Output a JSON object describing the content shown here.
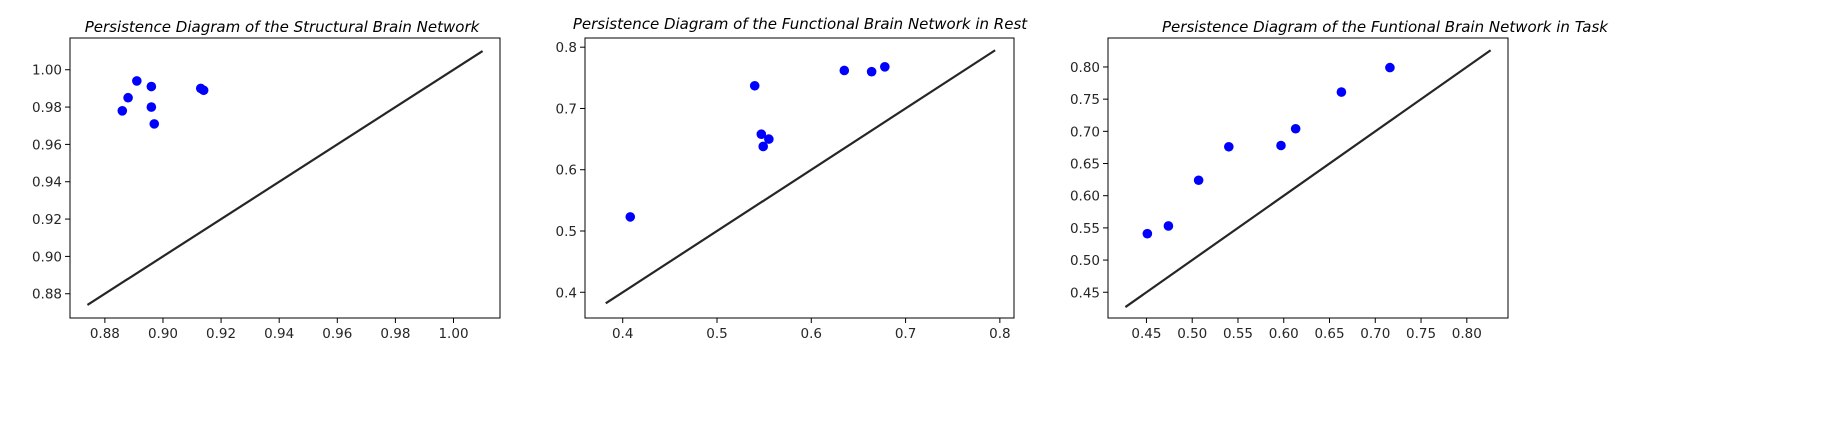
{
  "chart_data": [
    {
      "type": "scatter",
      "title": "Persistence Diagram of the Structural Brain Network",
      "xlabel": "",
      "ylabel": "",
      "xlim": [
        0.868,
        1.016
      ],
      "ylim": [
        0.867,
        1.017
      ],
      "xticks": [
        0.88,
        0.9,
        0.92,
        0.94,
        0.96,
        0.98,
        1.0
      ],
      "xtick_labels": [
        "0.88",
        "0.90",
        "0.92",
        "0.94",
        "0.96",
        "0.98",
        "1.00"
      ],
      "yticks": [
        0.88,
        0.9,
        0.92,
        0.94,
        0.96,
        0.98,
        1.0
      ],
      "ytick_labels": [
        "0.88",
        "0.90",
        "0.92",
        "0.94",
        "0.96",
        "0.98",
        "1.00"
      ],
      "diagonal": [
        0.874,
        1.01
      ],
      "point_color": "#0000ff",
      "line_color": "#262626",
      "points": [
        {
          "x": 0.886,
          "y": 0.978
        },
        {
          "x": 0.888,
          "y": 0.985
        },
        {
          "x": 0.891,
          "y": 0.994
        },
        {
          "x": 0.896,
          "y": 0.991
        },
        {
          "x": 0.896,
          "y": 0.98
        },
        {
          "x": 0.897,
          "y": 0.971
        },
        {
          "x": 0.913,
          "y": 0.99
        },
        {
          "x": 0.914,
          "y": 0.989
        }
      ]
    },
    {
      "type": "scatter",
      "title": "Persistence Diagram of the Functional Brain Network in Rest",
      "xlabel": "",
      "ylabel": "",
      "xlim": [
        0.36,
        0.815
      ],
      "ylim": [
        0.358,
        0.815
      ],
      "xticks": [
        0.4,
        0.5,
        0.6,
        0.7,
        0.8
      ],
      "xtick_labels": [
        "0.4",
        "0.5",
        "0.6",
        "0.7",
        "0.8"
      ],
      "yticks": [
        0.4,
        0.5,
        0.6,
        0.7,
        0.8
      ],
      "ytick_labels": [
        "0.4",
        "0.5",
        "0.6",
        "0.7",
        "0.8"
      ],
      "diagonal": [
        0.382,
        0.795
      ],
      "point_color": "#0000ff",
      "line_color": "#262626",
      "points": [
        {
          "x": 0.408,
          "y": 0.523
        },
        {
          "x": 0.54,
          "y": 0.737
        },
        {
          "x": 0.547,
          "y": 0.658
        },
        {
          "x": 0.549,
          "y": 0.638
        },
        {
          "x": 0.555,
          "y": 0.65
        },
        {
          "x": 0.635,
          "y": 0.762
        },
        {
          "x": 0.664,
          "y": 0.76
        },
        {
          "x": 0.678,
          "y": 0.768
        }
      ]
    },
    {
      "type": "scatter",
      "title": "Persistence Diagram of the Funtional Brain Network in Task",
      "xlabel": "",
      "ylabel": "",
      "xlim": [
        0.408,
        0.845
      ],
      "ylim": [
        0.41,
        0.845
      ],
      "xticks": [
        0.45,
        0.5,
        0.55,
        0.6,
        0.65,
        0.7,
        0.75,
        0.8
      ],
      "xtick_labels": [
        "0.45",
        "0.50",
        "0.55",
        "0.60",
        "0.65",
        "0.70",
        "0.75",
        "0.80"
      ],
      "yticks": [
        0.45,
        0.5,
        0.55,
        0.6,
        0.65,
        0.7,
        0.75,
        0.8
      ],
      "ytick_labels": [
        "0.45",
        "0.50",
        "0.55",
        "0.60",
        "0.65",
        "0.70",
        "0.75",
        "0.80"
      ],
      "diagonal": [
        0.427,
        0.826
      ],
      "point_color": "#0000ff",
      "line_color": "#262626",
      "points": [
        {
          "x": 0.451,
          "y": 0.541
        },
        {
          "x": 0.474,
          "y": 0.553
        },
        {
          "x": 0.507,
          "y": 0.624
        },
        {
          "x": 0.54,
          "y": 0.676
        },
        {
          "x": 0.597,
          "y": 0.678
        },
        {
          "x": 0.613,
          "y": 0.704
        },
        {
          "x": 0.663,
          "y": 0.761
        },
        {
          "x": 0.716,
          "y": 0.799
        }
      ]
    }
  ]
}
